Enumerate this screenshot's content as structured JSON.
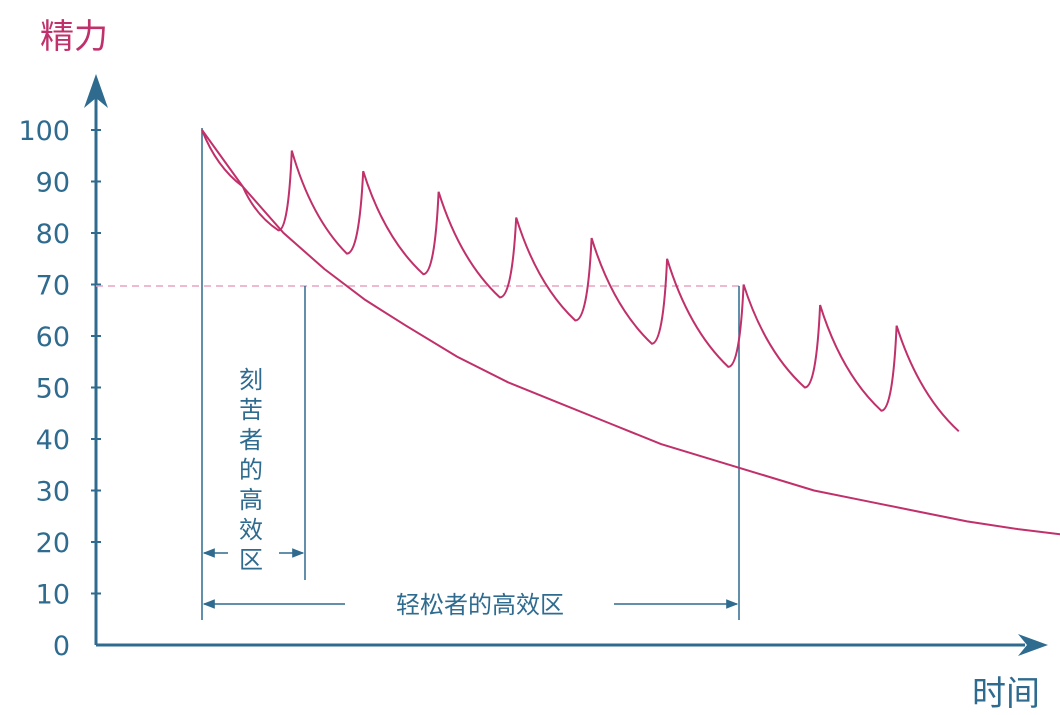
{
  "chart_data": {
    "type": "line",
    "ylabel": "精力",
    "xlabel": "时间",
    "ylim": [
      0,
      100
    ],
    "yticks": [
      "100",
      "90",
      "80",
      "70",
      "60",
      "50",
      "40",
      "30",
      "20",
      "10",
      "0"
    ],
    "reference_line": {
      "y": 70,
      "style": "dashed"
    },
    "series": [
      {
        "points": [
          [
            0,
            100
          ],
          [
            4,
            89
          ],
          [
            8,
            80
          ],
          [
            12,
            73
          ],
          [
            16,
            67
          ],
          [
            20,
            62
          ],
          [
            25,
            56
          ],
          [
            30,
            51
          ],
          [
            35,
            47
          ],
          [
            40,
            43
          ],
          [
            45,
            39
          ],
          [
            50,
            36
          ],
          [
            55,
            33
          ],
          [
            60,
            30
          ],
          [
            65,
            28
          ],
          [
            70,
            26
          ],
          [
            75,
            24
          ],
          [
            80,
            22.5
          ],
          [
            85,
            21.3
          ],
          [
            90,
            20.6
          ],
          [
            95,
            20.1
          ],
          [
            100,
            20
          ]
        ]
      },
      {
        "points": [
          [
            0,
            100
          ],
          [
            4,
            89
          ],
          [
            7.5,
            80.5
          ],
          [
            8.8,
            96
          ],
          [
            14.2,
            76
          ],
          [
            15.8,
            92
          ],
          [
            21.7,
            72
          ],
          [
            23.2,
            88
          ],
          [
            29.2,
            67.5
          ],
          [
            30.8,
            83
          ],
          [
            36.6,
            63
          ],
          [
            38.2,
            79
          ],
          [
            44.1,
            58.5
          ],
          [
            45.6,
            75
          ],
          [
            51.6,
            54
          ],
          [
            53.1,
            70
          ],
          [
            59.1,
            50
          ],
          [
            60.6,
            66
          ],
          [
            66.6,
            45.5
          ],
          [
            68.1,
            62
          ],
          [
            74.2,
            41.5
          ]
        ]
      }
    ],
    "zones": [
      {
        "label": "刻苦者的高效区",
        "x_start": 0,
        "x_end": 8.3
      },
      {
        "label": "轻松者的高效区",
        "x_start": 0,
        "x_end": 53.1
      }
    ],
    "colors": {
      "curve": "#c0306a",
      "axis": "#2e6b8f",
      "ylabel": "#c0306a",
      "reference": "#e9a4c0"
    }
  }
}
